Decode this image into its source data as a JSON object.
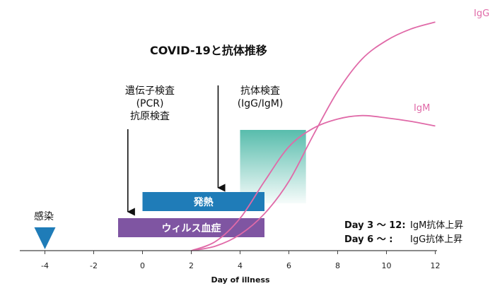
{
  "chart_data": {
    "type": "line",
    "title": "COVID-19と抗体推移",
    "xlabel": "Day of illness",
    "xlim": [
      -5,
      12
    ],
    "x_ticks": [
      -4,
      -2,
      0,
      2,
      4,
      6,
      8,
      10,
      12
    ],
    "ylim": [
      0,
      1
    ],
    "grid": false,
    "series": [
      {
        "name": "IgG",
        "color": "#e06aa8",
        "x": [
          2,
          3,
          4,
          5,
          6,
          7,
          8,
          9,
          10,
          11,
          12
        ],
        "y": [
          0,
          0.02,
          0.07,
          0.16,
          0.3,
          0.5,
          0.69,
          0.83,
          0.91,
          0.96,
          0.99
        ]
      },
      {
        "name": "IgM",
        "color": "#e06aa8",
        "x": [
          2,
          3,
          4,
          5,
          6,
          7,
          8,
          9,
          10,
          11,
          12
        ],
        "y": [
          0,
          0.04,
          0.14,
          0.3,
          0.45,
          0.53,
          0.57,
          0.585,
          0.575,
          0.56,
          0.54
        ]
      }
    ],
    "bands": [
      {
        "label": "発熱",
        "start": 0,
        "end": 5,
        "color": "#1f7cb8"
      },
      {
        "label": "ウィルス血症",
        "start": -1,
        "end": 5,
        "color": "#7f55a2"
      }
    ],
    "highlight": {
      "start": 4,
      "end": 6.7,
      "color": "#4fb9a8"
    },
    "annotations": {
      "infection": {
        "label": "感染",
        "x": -4
      },
      "pcr": {
        "line1": "遺伝子検査",
        "line2": "(PCR)",
        "line3": "抗原検査",
        "x": -0.6
      },
      "antibody": {
        "line1": "抗体検査",
        "line2": "(IgG/IgM)",
        "x": 3.1
      }
    },
    "notes": [
      {
        "day": "Day 3 ～ 12:",
        "text": "IgM抗体上昇"
      },
      {
        "day": "Day 6 ～ :",
        "text": "IgG抗体上昇"
      }
    ]
  }
}
